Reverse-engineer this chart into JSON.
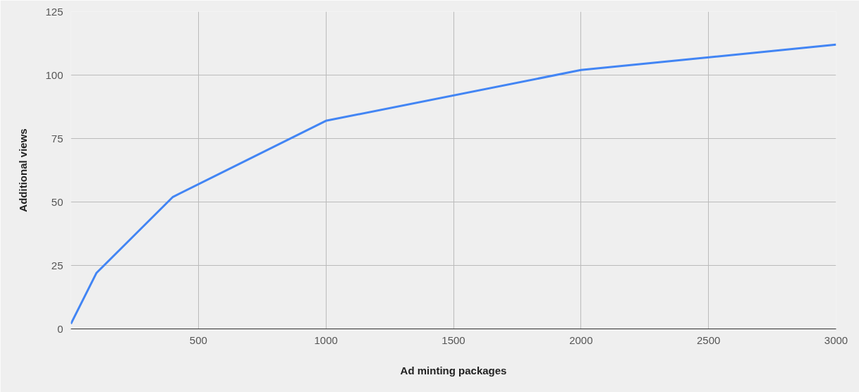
{
  "chart_data": {
    "type": "line",
    "xlabel": "Ad minting packages",
    "ylabel": "Additional views",
    "x": [
      0,
      100,
      400,
      1000,
      2000,
      3000
    ],
    "series": [
      {
        "color": "#4285f4",
        "values": [
          2,
          22,
          52,
          82,
          102,
          112
        ]
      }
    ],
    "xlim": [
      0,
      3000
    ],
    "xticks": [
      500,
      1000,
      1500,
      2000,
      2500,
      3000
    ],
    "ylim": [
      0,
      125
    ],
    "yticks": [
      0,
      25,
      50,
      75,
      100,
      125
    ],
    "grid": true,
    "marker": "none",
    "line_style": "solid"
  }
}
